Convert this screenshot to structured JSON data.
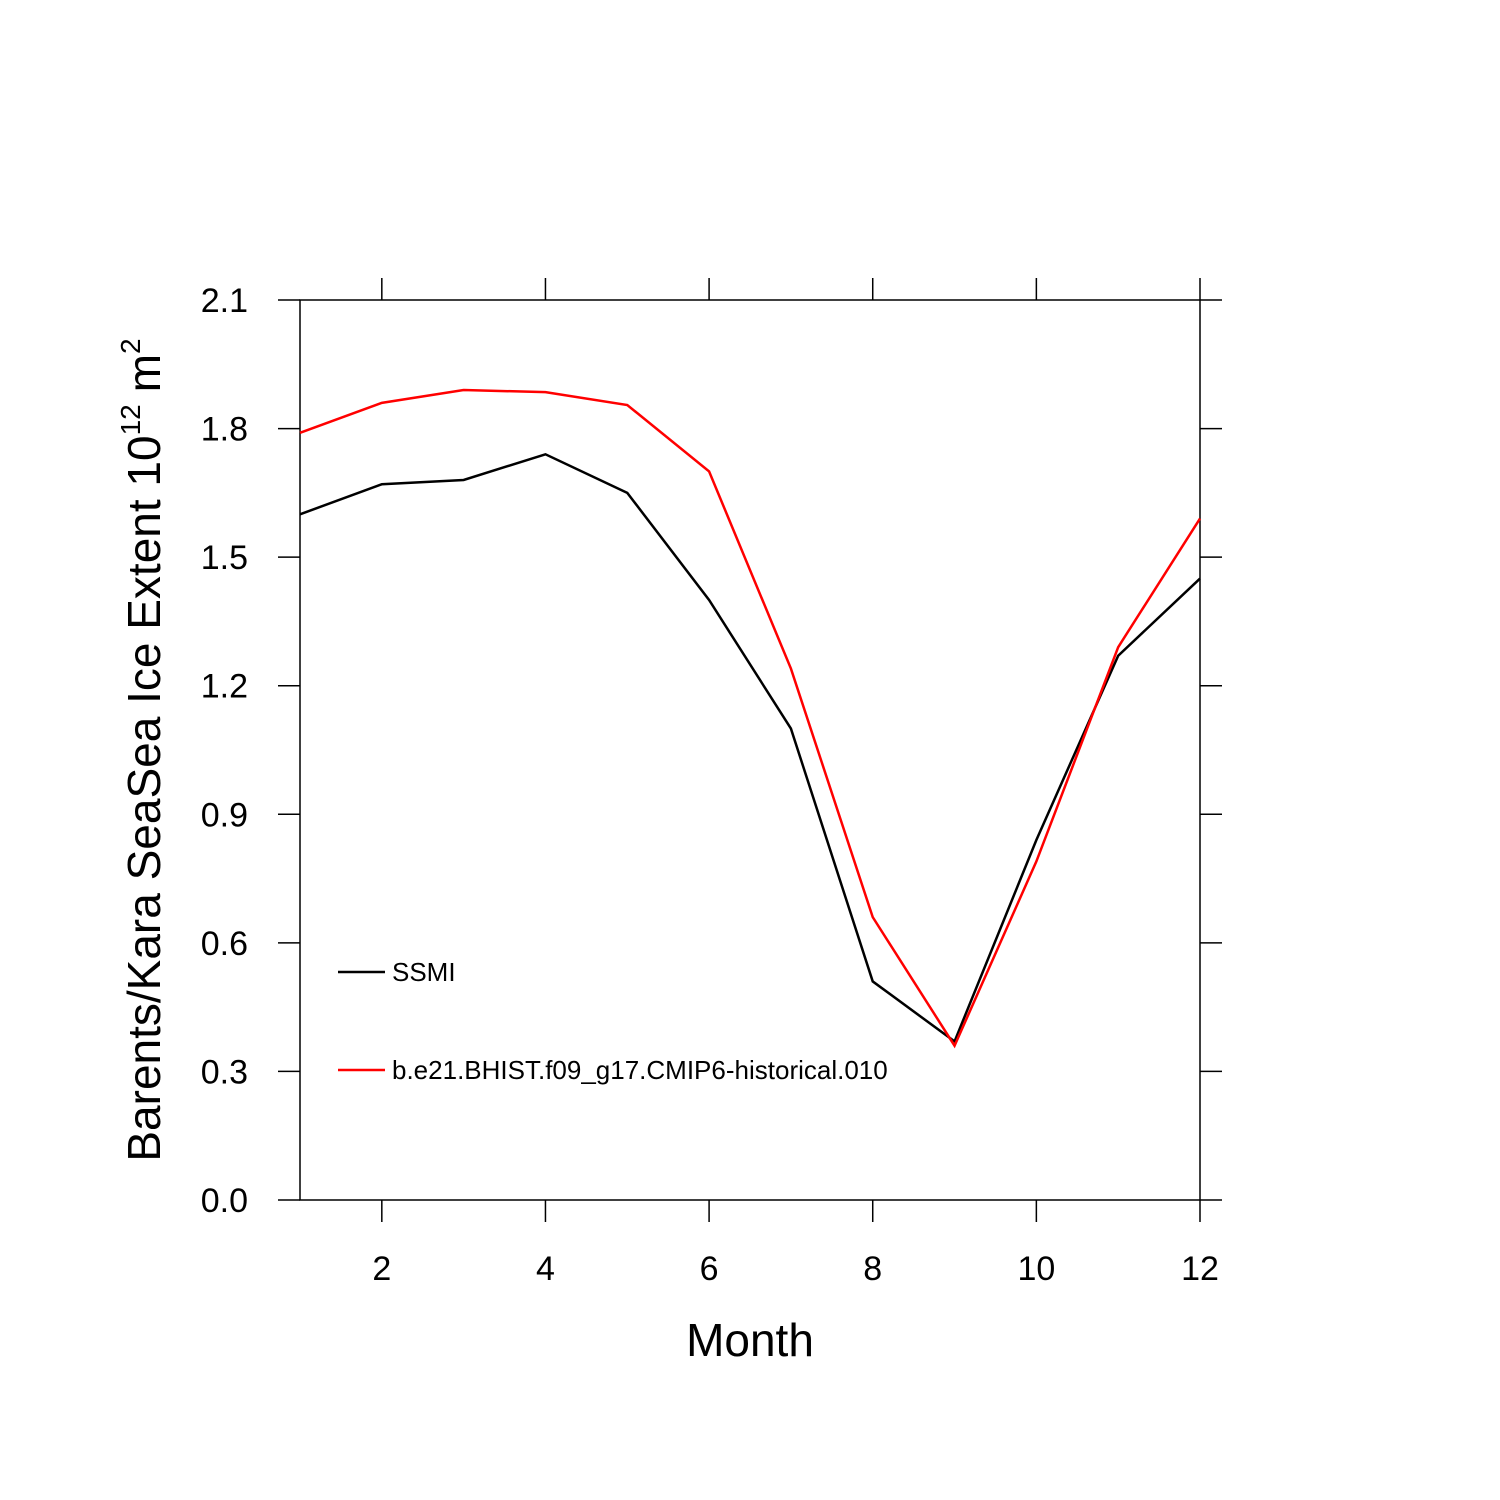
{
  "chart_data": {
    "type": "line",
    "x_label": "Month",
    "y_label": "Barents/Kara SeaSea Ice Extent 10",
    "y_label_exponent": "12",
    "y_label_unit": "m",
    "y_label_unit_exponent": "2",
    "x": [
      1,
      2,
      3,
      4,
      5,
      6,
      7,
      8,
      9,
      10,
      11,
      12
    ],
    "series": [
      {
        "name": "SSMI",
        "color": "#000000",
        "values": [
          1.6,
          1.67,
          1.68,
          1.74,
          1.65,
          1.4,
          1.1,
          0.51,
          0.37,
          0.84,
          1.27,
          1.45
        ]
      },
      {
        "name": "b.e21.BHIST.f09_g17.CMIP6-historical.010",
        "color": "#ff0000",
        "values": [
          1.79,
          1.86,
          1.89,
          1.885,
          1.855,
          1.7,
          1.24,
          0.66,
          0.36,
          0.79,
          1.29,
          1.59
        ]
      }
    ],
    "xlim": [
      1,
      12
    ],
    "xticks": [
      2,
      4,
      6,
      8,
      10,
      12
    ],
    "ylim": [
      0,
      2.1
    ],
    "yticks": [
      {
        "value": 0,
        "label": "0.0"
      },
      0.3,
      0.6,
      0.9,
      1.2,
      1.5,
      1.8,
      2.1
    ],
    "grid": false,
    "legend_position": "lower-left"
  }
}
